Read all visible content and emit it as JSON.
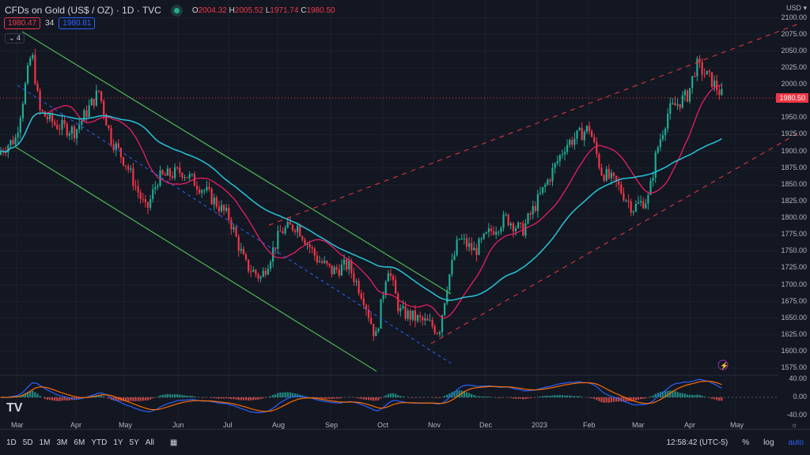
{
  "header": {
    "symbol": "CFDs on Gold (US$ / OZ) · 1D · TVC",
    "open_label": "O",
    "open": "2004.32",
    "high_label": "H",
    "high": "2005.52",
    "low_label": "L",
    "low": "1971.74",
    "close_label": "C",
    "close": "1980.50"
  },
  "tags": {
    "sell": "1980.47",
    "spread": "34",
    "buy": "1980.81"
  },
  "collapse": {
    "label": "4"
  },
  "axis": {
    "currency": "USD ▾",
    "prices": [
      "2100.00",
      "2075.00",
      "2050.00",
      "2025.00",
      "2000.00",
      "1950.00",
      "1925.00",
      "1900.00",
      "1875.00",
      "1850.00",
      "1825.00",
      "1800.00",
      "1775.00",
      "1750.00",
      "1725.00",
      "1700.00",
      "1675.00",
      "1650.00",
      "1625.00",
      "1600.00",
      "1575.00"
    ],
    "last_price": "1980.50",
    "macd_ticks": [
      "40.00",
      "0.00",
      "-40.00"
    ]
  },
  "months": [
    "Mar",
    "Apr",
    "May",
    "Jun",
    "Jul",
    "Aug",
    "Sep",
    "Oct",
    "Nov",
    "Dec",
    "2023",
    "Feb",
    "Mar",
    "Apr",
    "May"
  ],
  "toolbar": {
    "ranges": [
      "1D",
      "5D",
      "1M",
      "3M",
      "6M",
      "YTD",
      "1Y",
      "5Y",
      "All"
    ],
    "time": "12:58:42 (UTC-5)",
    "percent": "%",
    "log": "log",
    "auto": "auto"
  },
  "colors": {
    "up": "#22ab94",
    "down": "#f23645",
    "ma_fast": "#e91e63",
    "ma_slow": "#26c6da",
    "channel": "#4caf50",
    "accent": "#2962ff"
  },
  "chart_data": {
    "type": "candlestick",
    "price_path": [
      [
        0,
        1900
      ],
      [
        20,
        1920
      ],
      [
        40,
        2050
      ],
      [
        50,
        1960
      ],
      [
        70,
        1940
      ],
      [
        95,
        1930
      ],
      [
        125,
        1990
      ],
      [
        140,
        1920
      ],
      [
        160,
        1880
      ],
      [
        185,
        1810
      ],
      [
        200,
        1860
      ],
      [
        230,
        1870
      ],
      [
        260,
        1840
      ],
      [
        290,
        1800
      ],
      [
        310,
        1730
      ],
      [
        330,
        1710
      ],
      [
        355,
        1780
      ],
      [
        375,
        1790
      ],
      [
        400,
        1740
      ],
      [
        420,
        1720
      ],
      [
        440,
        1730
      ],
      [
        460,
        1680
      ],
      [
        475,
        1620
      ],
      [
        490,
        1730
      ],
      [
        505,
        1660
      ],
      [
        525,
        1650
      ],
      [
        545,
        1640
      ],
      [
        555,
        1630
      ],
      [
        565,
        1700
      ],
      [
        580,
        1770
      ],
      [
        600,
        1750
      ],
      [
        620,
        1780
      ],
      [
        640,
        1800
      ],
      [
        660,
        1780
      ],
      [
        690,
        1850
      ],
      [
        715,
        1910
      ],
      [
        745,
        1935
      ],
      [
        760,
        1870
      ],
      [
        780,
        1850
      ],
      [
        800,
        1815
      ],
      [
        820,
        1830
      ],
      [
        830,
        1900
      ],
      [
        845,
        1960
      ],
      [
        870,
        1985
      ],
      [
        880,
        2030
      ],
      [
        900,
        2005
      ],
      [
        915,
        1980
      ]
    ]
  }
}
